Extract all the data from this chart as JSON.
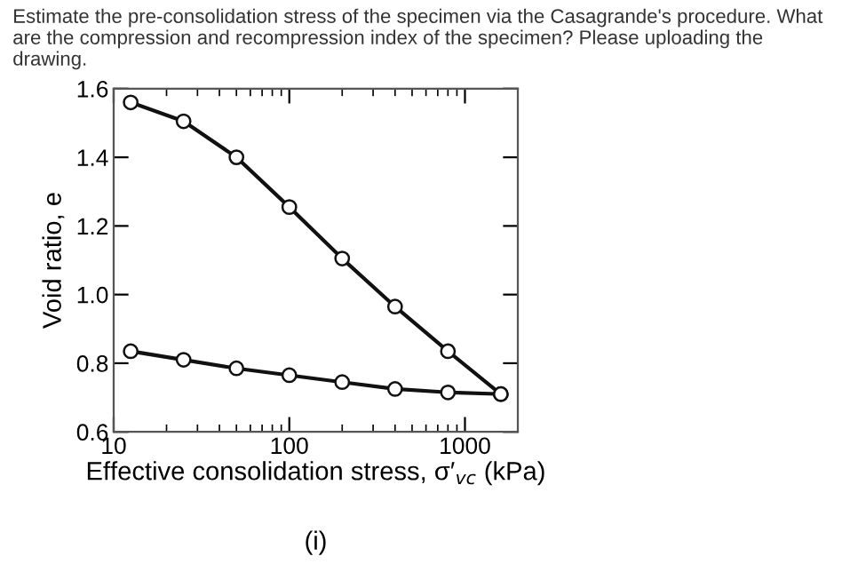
{
  "chart_data": {
    "type": "line",
    "title": "Estimate the pre-consolidation stress of the specimen via the Casagrande's procedure. What are the compression and recompression index of the specimen? Please uploading the drawing.",
    "xlabel": "Effective consolidation stress, σ′$_{vc}$ (kPa)",
    "ylabel": "Void ratio, e",
    "annotations": [
      "(i)"
    ],
    "log": "x",
    "x": [
      12.5,
      25,
      50,
      100,
      200,
      400,
      800,
      1600
    ],
    "series": [
      {
        "color": "#111111",
        "values": [
          1.56,
          1.505,
          1.4,
          1.255,
          1.105,
          0.965,
          0.835,
          0.71
        ]
      },
      {
        "color": "#111111",
        "values": [
          0.835,
          0.81,
          0.785,
          0.765,
          0.745,
          0.725,
          0.715,
          0.71
        ]
      }
    ],
    "xlim": [
      10,
      2000
    ],
    "xticks": [
      10,
      100,
      1000
    ],
    "ylim": [
      0.6,
      1.6
    ],
    "yticks": [
      0.6,
      0.8,
      {
        "value": 1,
        "label": "1.0"
      },
      1.2,
      1.4,
      1.6
    ],
    "marker": "circle",
    "line_style": "solid",
    "grid": false,
    "legend": false
  }
}
